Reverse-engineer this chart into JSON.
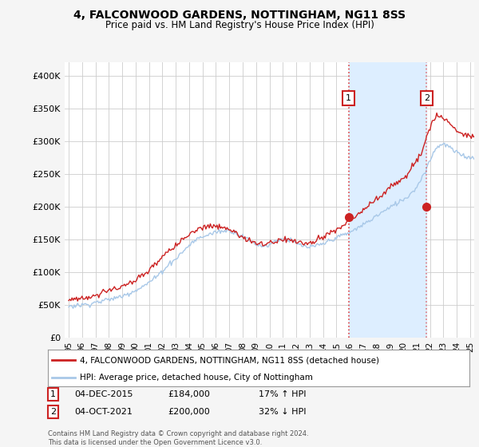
{
  "title": "4, FALCONWOOD GARDENS, NOTTINGHAM, NG11 8SS",
  "subtitle": "Price paid vs. HM Land Registry's House Price Index (HPI)",
  "ylim": [
    0,
    420000
  ],
  "yticks": [
    0,
    50000,
    100000,
    150000,
    200000,
    250000,
    300000,
    350000,
    400000
  ],
  "ytick_labels": [
    "£0",
    "£50K",
    "£100K",
    "£150K",
    "£200K",
    "£250K",
    "£300K",
    "£350K",
    "£400K"
  ],
  "hpi_color": "#a8c8e8",
  "price_color": "#cc2222",
  "vline_color": "#dd4444",
  "shade_color": "#ddeeff",
  "bg_color": "#f5f5f5",
  "plot_bg": "#ffffff",
  "legend_label_price": "4, FALCONWOOD GARDENS, NOTTINGHAM, NG11 8SS (detached house)",
  "legend_label_hpi": "HPI: Average price, detached house, City of Nottingham",
  "footer": "Contains HM Land Registry data © Crown copyright and database right 2024.\nThis data is licensed under the Open Government Licence v3.0.",
  "sale1_year": 2015.92,
  "sale1_price": 184000,
  "sale2_year": 2021.75,
  "sale2_price": 200000,
  "xlim_start": 1995.0,
  "xlim_end": 2025.3
}
